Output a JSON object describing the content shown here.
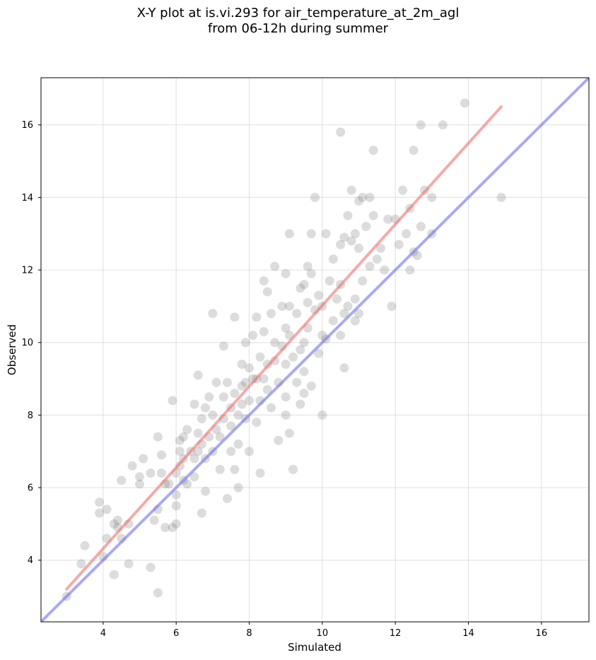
{
  "chart_data": {
    "type": "scatter",
    "title_line1": "X-Y plot at is.vi.293 for air_temperature_at_2m_agl",
    "title_line2": "from 06-12h during summer",
    "xlabel": "Simulated",
    "ylabel": "Observed",
    "xlim": [
      2.3,
      17.3
    ],
    "ylim": [
      2.3,
      17.3
    ],
    "xticks": [
      4,
      6,
      8,
      10,
      12,
      14,
      16
    ],
    "yticks": [
      4,
      6,
      8,
      10,
      12,
      14,
      16
    ],
    "grid": true,
    "marker_color": "#808080",
    "fit_line": {
      "name": "",
      "color": "#f07070",
      "x": [
        3.0,
        14.9
      ],
      "y": [
        3.2,
        16.5
      ]
    },
    "identity_line": {
      "name": "",
      "color": "#7070f0",
      "x": [
        2.3,
        17.3
      ],
      "y": [
        2.3,
        17.3
      ]
    },
    "points": [
      [
        3.0,
        3.0
      ],
      [
        3.4,
        3.9
      ],
      [
        3.5,
        4.4
      ],
      [
        3.9,
        5.6
      ],
      [
        3.9,
        5.3
      ],
      [
        4.0,
        4.1
      ],
      [
        4.1,
        4.6
      ],
      [
        4.1,
        5.4
      ],
      [
        4.3,
        3.6
      ],
      [
        4.3,
        5.0
      ],
      [
        4.4,
        4.9
      ],
      [
        4.4,
        5.1
      ],
      [
        4.5,
        6.2
      ],
      [
        4.5,
        4.6
      ],
      [
        4.7,
        5.0
      ],
      [
        4.7,
        3.9
      ],
      [
        4.8,
        6.6
      ],
      [
        5.0,
        6.1
      ],
      [
        5.0,
        6.3
      ],
      [
        5.1,
        6.8
      ],
      [
        5.3,
        3.8
      ],
      [
        5.3,
        6.4
      ],
      [
        5.4,
        5.1
      ],
      [
        5.5,
        3.1
      ],
      [
        5.5,
        7.4
      ],
      [
        5.5,
        5.4
      ],
      [
        5.6,
        6.9
      ],
      [
        5.6,
        6.4
      ],
      [
        5.7,
        6.1
      ],
      [
        5.7,
        4.9
      ],
      [
        5.8,
        6.1
      ],
      [
        5.9,
        8.4
      ],
      [
        5.9,
        4.9
      ],
      [
        6.0,
        5.0
      ],
      [
        6.0,
        5.5
      ],
      [
        6.0,
        5.8
      ],
      [
        6.0,
        6.4
      ],
      [
        6.1,
        6.6
      ],
      [
        6.1,
        7.0
      ],
      [
        6.1,
        7.3
      ],
      [
        6.2,
        6.2
      ],
      [
        6.2,
        7.4
      ],
      [
        6.2,
        6.8
      ],
      [
        6.3,
        7.6
      ],
      [
        6.3,
        6.1
      ],
      [
        6.4,
        7.0
      ],
      [
        6.5,
        6.3
      ],
      [
        6.5,
        8.3
      ],
      [
        6.5,
        6.8
      ],
      [
        6.6,
        9.1
      ],
      [
        6.6,
        7.5
      ],
      [
        6.6,
        7.0
      ],
      [
        6.7,
        5.3
      ],
      [
        6.7,
        7.9
      ],
      [
        6.7,
        7.2
      ],
      [
        6.8,
        8.2
      ],
      [
        6.8,
        6.8
      ],
      [
        6.8,
        5.9
      ],
      [
        6.9,
        7.4
      ],
      [
        6.9,
        8.5
      ],
      [
        7.0,
        10.8
      ],
      [
        7.0,
        7.0
      ],
      [
        7.0,
        8.0
      ],
      [
        7.1,
        8.9
      ],
      [
        7.1,
        7.6
      ],
      [
        7.2,
        6.5
      ],
      [
        7.2,
        7.4
      ],
      [
        7.3,
        9.9
      ],
      [
        7.3,
        8.5
      ],
      [
        7.3,
        7.9
      ],
      [
        7.4,
        8.9
      ],
      [
        7.4,
        5.7
      ],
      [
        7.5,
        8.2
      ],
      [
        7.5,
        7.7
      ],
      [
        7.5,
        7.0
      ],
      [
        7.6,
        10.7
      ],
      [
        7.6,
        8.6
      ],
      [
        7.6,
        6.5
      ],
      [
        7.7,
        8.0
      ],
      [
        7.7,
        7.2
      ],
      [
        7.7,
        6.0
      ],
      [
        7.8,
        9.4
      ],
      [
        7.8,
        8.8
      ],
      [
        7.8,
        8.3
      ],
      [
        7.9,
        10.0
      ],
      [
        7.9,
        7.9
      ],
      [
        7.9,
        8.9
      ],
      [
        8.0,
        9.3
      ],
      [
        8.0,
        8.4
      ],
      [
        8.0,
        7.0
      ],
      [
        8.1,
        10.2
      ],
      [
        8.1,
        9.0
      ],
      [
        8.2,
        10.7
      ],
      [
        8.2,
        9.0
      ],
      [
        8.2,
        7.8
      ],
      [
        8.3,
        8.4
      ],
      [
        8.3,
        9.6
      ],
      [
        8.3,
        6.4
      ],
      [
        8.4,
        11.7
      ],
      [
        8.4,
        10.3
      ],
      [
        8.4,
        9.0
      ],
      [
        8.5,
        8.7
      ],
      [
        8.5,
        9.4
      ],
      [
        8.5,
        11.4
      ],
      [
        8.6,
        10.8
      ],
      [
        8.6,
        8.2
      ],
      [
        8.7,
        9.5
      ],
      [
        8.7,
        10.0
      ],
      [
        8.7,
        12.1
      ],
      [
        8.8,
        7.3
      ],
      [
        8.8,
        8.9
      ],
      [
        8.9,
        11.0
      ],
      [
        8.9,
        9.9
      ],
      [
        9.0,
        10.4
      ],
      [
        9.0,
        8.5
      ],
      [
        9.0,
        8.0
      ],
      [
        9.0,
        9.4
      ],
      [
        9.0,
        11.9
      ],
      [
        9.1,
        13.0
      ],
      [
        9.1,
        10.2
      ],
      [
        9.1,
        7.5
      ],
      [
        9.1,
        11.0
      ],
      [
        9.2,
        9.6
      ],
      [
        9.2,
        6.5
      ],
      [
        9.3,
        10.8
      ],
      [
        9.3,
        8.9
      ],
      [
        9.4,
        11.5
      ],
      [
        9.4,
        8.3
      ],
      [
        9.4,
        9.8
      ],
      [
        9.5,
        11.6
      ],
      [
        9.5,
        10.0
      ],
      [
        9.5,
        8.6
      ],
      [
        9.5,
        9.2
      ],
      [
        9.6,
        12.1
      ],
      [
        9.6,
        10.4
      ],
      [
        9.6,
        11.1
      ],
      [
        9.7,
        13.0
      ],
      [
        9.7,
        8.8
      ],
      [
        9.7,
        11.9
      ],
      [
        9.8,
        14.0
      ],
      [
        9.8,
        10.9
      ],
      [
        9.9,
        11.3
      ],
      [
        9.9,
        9.7
      ],
      [
        10.0,
        10.2
      ],
      [
        10.0,
        8.0
      ],
      [
        10.0,
        11.0
      ],
      [
        10.1,
        13.0
      ],
      [
        10.1,
        10.1
      ],
      [
        10.2,
        11.7
      ],
      [
        10.3,
        12.3
      ],
      [
        10.3,
        10.6
      ],
      [
        10.4,
        11.2
      ],
      [
        10.5,
        12.7
      ],
      [
        10.5,
        10.2
      ],
      [
        10.5,
        11.6
      ],
      [
        10.6,
        12.9
      ],
      [
        10.6,
        9.3
      ],
      [
        10.6,
        10.8
      ],
      [
        10.7,
        13.5
      ],
      [
        10.7,
        11.0
      ],
      [
        10.8,
        12.8
      ],
      [
        10.8,
        14.2
      ],
      [
        10.9,
        13.0
      ],
      [
        10.9,
        11.2
      ],
      [
        10.9,
        10.6
      ],
      [
        11.0,
        13.9
      ],
      [
        11.0,
        12.6
      ],
      [
        11.0,
        10.8
      ],
      [
        11.1,
        14.0
      ],
      [
        11.1,
        11.7
      ],
      [
        11.2,
        13.2
      ],
      [
        11.3,
        14.0
      ],
      [
        11.3,
        12.1
      ],
      [
        11.4,
        15.3
      ],
      [
        11.4,
        13.5
      ],
      [
        11.5,
        12.3
      ],
      [
        11.6,
        12.6
      ],
      [
        11.7,
        12.0
      ],
      [
        11.8,
        13.4
      ],
      [
        11.9,
        11.0
      ],
      [
        12.0,
        13.4
      ],
      [
        12.1,
        12.7
      ],
      [
        12.2,
        14.2
      ],
      [
        12.3,
        13.0
      ],
      [
        12.4,
        12.0
      ],
      [
        12.4,
        13.7
      ],
      [
        12.5,
        15.3
      ],
      [
        12.5,
        12.5
      ],
      [
        12.6,
        12.4
      ],
      [
        12.7,
        16.0
      ],
      [
        12.7,
        13.2
      ],
      [
        12.8,
        14.2
      ],
      [
        13.0,
        13.0
      ],
      [
        13.0,
        14.0
      ],
      [
        13.3,
        16.0
      ],
      [
        13.9,
        16.6
      ],
      [
        14.9,
        14.0
      ],
      [
        10.5,
        15.8
      ]
    ]
  }
}
